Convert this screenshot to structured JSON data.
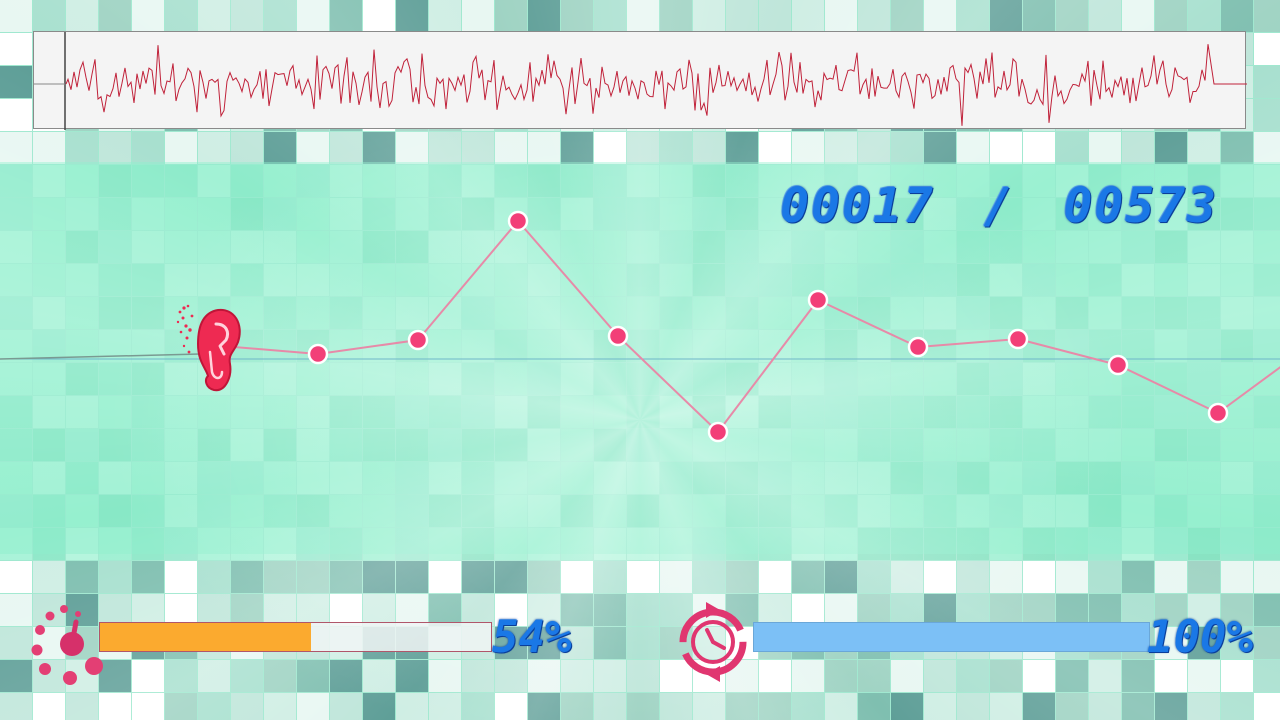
{
  "counter": {
    "current": "00017",
    "separator": "/",
    "total": "00573"
  },
  "hud": {
    "volume": {
      "percent_label": "54%",
      "value": 0.54,
      "fill_color": "#fbaa2f"
    },
    "time": {
      "percent_label": "100%",
      "value": 1.0,
      "fill_color": "#7cc0f6"
    }
  },
  "icons": {
    "player": "ear-icon",
    "volume": "speaker-dial-icon",
    "time": "clock-refresh-icon"
  },
  "colors": {
    "node": "#f23f78",
    "track_line": "#e78aa8",
    "waveform": "#c0223a",
    "text_blue": "#1a78e6"
  }
}
